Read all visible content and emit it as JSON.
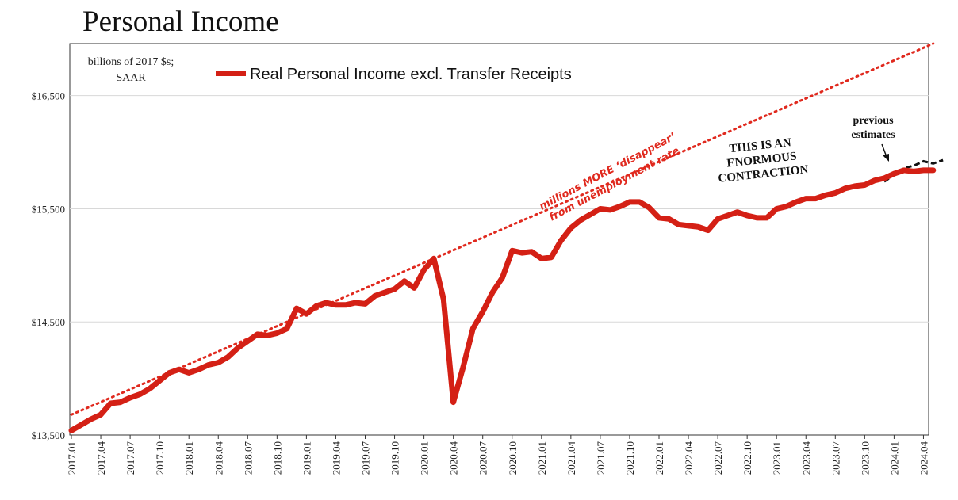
{
  "title": "Personal Income",
  "chart_data": {
    "type": "line",
    "units_line1": "billions of 2017 $s;",
    "units_line2": "SAAR",
    "ylim": [
      13500,
      16960
    ],
    "yticks": [
      "$13,500",
      "$14,500",
      "$15,500",
      "$16,500"
    ],
    "ytick_values": [
      13500,
      14500,
      15500,
      16500
    ],
    "xtick_labels": [
      "2017.01",
      "2017.04",
      "2017.07",
      "2017.10",
      "2018.01",
      "2018.04",
      "2018.07",
      "2018.10",
      "2019.01",
      "2019.04",
      "2019.07",
      "2019.10",
      "2020.01",
      "2020.04",
      "2020.07",
      "2020.10",
      "2021.01",
      "2021.04",
      "2021.07",
      "2021.10",
      "2022.01",
      "2022.04",
      "2022.07",
      "2022.10",
      "2023.01",
      "2023.04",
      "2023.07",
      "2023.10",
      "2024.01",
      "2024.04"
    ],
    "legend": "Real Personal Income excl. Transfer Receipts",
    "series": [
      {
        "name": "Real Personal Income excl. Transfer Receipts",
        "color": "#d42015",
        "values": [
          13540,
          13590,
          13640,
          13680,
          13780,
          13790,
          13830,
          13860,
          13910,
          13980,
          14050,
          14080,
          14050,
          14080,
          14120,
          14140,
          14190,
          14270,
          14330,
          14390,
          14380,
          14400,
          14440,
          14620,
          14570,
          14640,
          14670,
          14650,
          14650,
          14670,
          14660,
          14730,
          14760,
          14790,
          14860,
          14800,
          14960,
          15060,
          14700,
          13790,
          14100,
          14440,
          14590,
          14760,
          14890,
          15130,
          15110,
          15120,
          15060,
          15070,
          15220,
          15330,
          15400,
          15450,
          15500,
          15490,
          15520,
          15560,
          15560,
          15510,
          15420,
          15410,
          15360,
          15350,
          15340,
          15310,
          15410,
          15440,
          15470,
          15440,
          15420,
          15420,
          15500,
          15520,
          15560,
          15590,
          15590,
          15620,
          15640,
          15680,
          15700,
          15710,
          15750,
          15770,
          15810,
          15840,
          15830,
          15840,
          15840
        ]
      },
      {
        "name": "previous estimates",
        "color": "#111111",
        "x_start_index": 83,
        "values": [
          15740,
          15800,
          15860,
          15880,
          15920,
          15900,
          15930
        ]
      }
    ],
    "trend": {
      "label": "unemployment trend",
      "color": "#e0291e",
      "start": [
        0,
        13680
      ],
      "end": [
        88,
        16960
      ]
    },
    "annotations": {
      "trend_label_line1": "millions MORE ‘disappear’",
      "trend_label_line2": "from unemployment rate",
      "contraction_line1": "THIS IS AN",
      "contraction_line2": "ENORMOUS",
      "contraction_line3": "CONTRACTION",
      "previous_line1": "previous",
      "previous_line2": "estimates"
    }
  }
}
